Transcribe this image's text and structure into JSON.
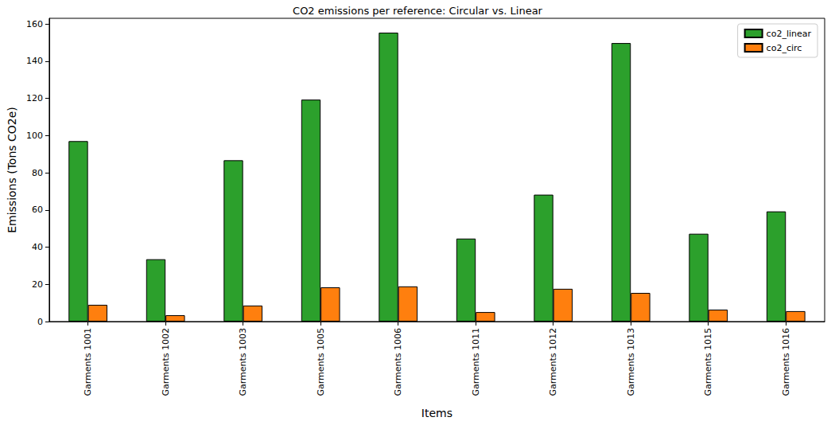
{
  "chart_data": {
    "type": "bar",
    "title": "CO2 emissions per reference: Circular vs. Linear",
    "x_label": "Items",
    "y_label": "Emissions (Tons CO2e)",
    "categories": [
      "Garments 1001",
      "Garments 1002",
      "Garments 1003",
      "Garments 1005",
      "Garments 1006",
      "Garments 1011",
      "Garments 1012",
      "Garments 1013",
      "Garments 1015",
      "Garments 1016"
    ],
    "series": [
      {
        "name": "co2_linear",
        "color": "#2ca02c",
        "values": [
          97.0,
          33.5,
          86.7,
          119.3,
          155.3,
          44.6,
          68.2,
          149.7,
          47.2,
          59.2
        ]
      },
      {
        "name": "co2_circ",
        "color": "#ff7f0e",
        "values": [
          9.0,
          3.4,
          8.6,
          18.4,
          18.9,
          5.1,
          17.6,
          15.4,
          6.4,
          5.6
        ]
      }
    ],
    "ylim": [
      0,
      163
    ],
    "yticks": [
      0,
      20,
      40,
      60,
      80,
      100,
      120,
      140,
      160
    ],
    "grid": false,
    "legend": "upper right"
  }
}
